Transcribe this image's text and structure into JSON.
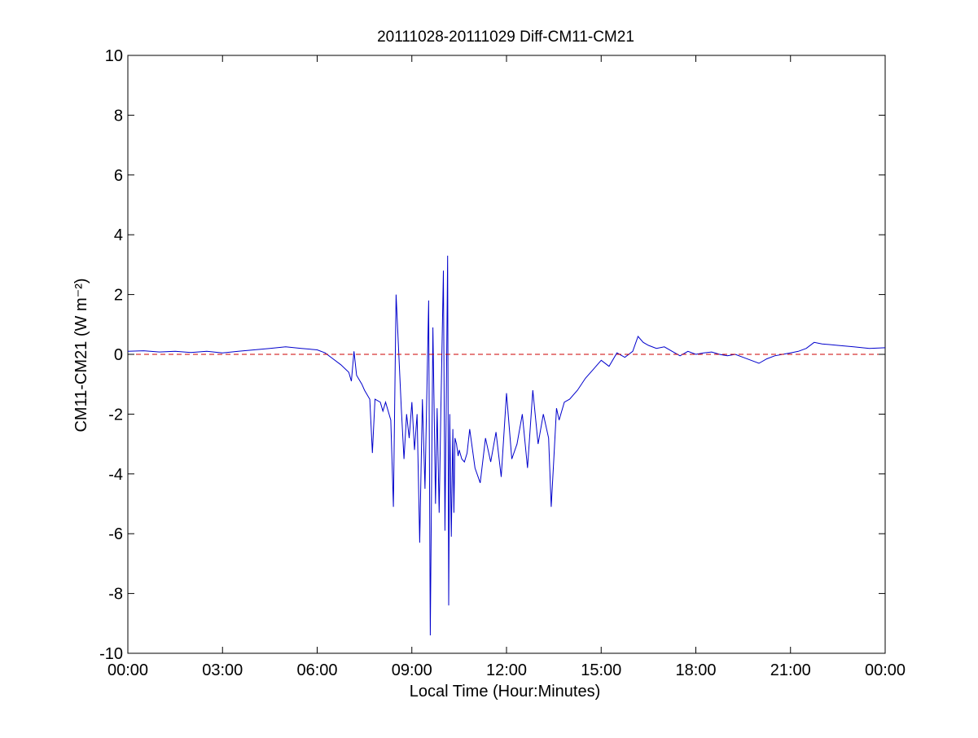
{
  "chart_data": {
    "type": "line",
    "title": "20111028-20111029 Diff-CM11-CM21",
    "xlabel": "Local Time (Hour:Minutes)",
    "ylabel": "CM11-CM21 (W m⁻²)",
    "xlim": [
      "00:00",
      "24:00"
    ],
    "ylim": [
      -10,
      10
    ],
    "x_ticks": [
      "00:00",
      "03:00",
      "06:00",
      "09:00",
      "12:00",
      "15:00",
      "18:00",
      "21:00",
      "00:00"
    ],
    "y_ticks": [
      "-10",
      "-8",
      "-6",
      "-4",
      "-2",
      "0",
      "2",
      "4",
      "6",
      "8",
      "10"
    ],
    "grid": false,
    "series": [
      {
        "color": "#0000cc",
        "style": "solid",
        "x": [
          "00:00",
          "00:30",
          "01:00",
          "01:30",
          "02:00",
          "02:30",
          "03:00",
          "03:30",
          "04:00",
          "04:30",
          "05:00",
          "05:30",
          "06:00",
          "06:15",
          "06:30",
          "06:45",
          "07:00",
          "07:05",
          "07:10",
          "07:15",
          "07:25",
          "07:30",
          "07:40",
          "07:45",
          "07:50",
          "08:00",
          "08:05",
          "08:10",
          "08:20",
          "08:25",
          "08:30",
          "08:40",
          "08:45",
          "08:50",
          "08:55",
          "09:00",
          "09:05",
          "09:10",
          "09:15",
          "09:20",
          "09:25",
          "09:28",
          "09:32",
          "09:35",
          "09:40",
          "09:43",
          "09:45",
          "09:48",
          "09:52",
          "09:55",
          "10:00",
          "10:03",
          "10:05",
          "10:08",
          "10:10",
          "10:12",
          "10:15",
          "10:18",
          "10:20",
          "10:22",
          "10:25",
          "10:28",
          "10:30",
          "10:35",
          "10:40",
          "10:45",
          "10:50",
          "11:00",
          "11:10",
          "11:20",
          "11:30",
          "11:40",
          "11:50",
          "12:00",
          "12:10",
          "12:20",
          "12:30",
          "12:40",
          "12:50",
          "13:00",
          "13:10",
          "13:20",
          "13:25",
          "13:30",
          "13:35",
          "13:40",
          "13:50",
          "14:00",
          "14:15",
          "14:30",
          "14:45",
          "15:00",
          "15:15",
          "15:30",
          "15:45",
          "16:00",
          "16:10",
          "16:20",
          "16:30",
          "16:45",
          "17:00",
          "17:15",
          "17:30",
          "17:45",
          "18:00",
          "18:15",
          "18:30",
          "18:45",
          "19:00",
          "19:15",
          "19:30",
          "19:45",
          "20:00",
          "20:15",
          "20:30",
          "20:45",
          "21:00",
          "21:15",
          "21:30",
          "21:45",
          "22:00",
          "22:30",
          "23:00",
          "23:30",
          "24:00"
        ],
        "y": [
          0.1,
          0.12,
          0.08,
          0.1,
          0.06,
          0.1,
          0.05,
          0.1,
          0.15,
          0.2,
          0.25,
          0.2,
          0.15,
          0.05,
          -0.15,
          -0.35,
          -0.6,
          -0.9,
          0.1,
          -0.7,
          -1.0,
          -1.2,
          -1.5,
          -3.3,
          -1.5,
          -1.6,
          -1.9,
          -1.6,
          -2.2,
          -5.1,
          2.0,
          -1.8,
          -3.5,
          -2.0,
          -2.8,
          -1.6,
          -3.2,
          -2.0,
          -6.3,
          -1.5,
          -4.5,
          -1.8,
          1.8,
          -9.4,
          0.9,
          -2.5,
          -5.0,
          -1.8,
          -5.3,
          -2.0,
          2.8,
          -5.9,
          -2.5,
          3.3,
          -8.4,
          -2.0,
          -6.1,
          -2.5,
          -5.3,
          -2.8,
          -3.0,
          -3.4,
          -3.2,
          -3.5,
          -3.6,
          -3.3,
          -2.5,
          -3.8,
          -4.3,
          -2.8,
          -3.6,
          -2.6,
          -4.1,
          -1.3,
          -3.5,
          -3.0,
          -2.0,
          -3.8,
          -1.2,
          -3.0,
          -2.0,
          -2.8,
          -5.1,
          -3.5,
          -1.8,
          -2.2,
          -1.6,
          -1.5,
          -1.2,
          -0.8,
          -0.5,
          -0.2,
          -0.4,
          0.05,
          -0.1,
          0.1,
          0.6,
          0.4,
          0.3,
          0.2,
          0.25,
          0.1,
          -0.05,
          0.1,
          0.0,
          0.05,
          0.08,
          0.0,
          -0.05,
          0.0,
          -0.1,
          -0.2,
          -0.3,
          -0.15,
          -0.05,
          0.0,
          0.05,
          0.1,
          0.2,
          0.4,
          0.35,
          0.3,
          0.25,
          0.2,
          0.22
        ]
      },
      {
        "color": "#cc0000",
        "style": "dashed",
        "x": [
          "00:00",
          "24:00"
        ],
        "y": [
          0,
          0
        ]
      }
    ]
  }
}
